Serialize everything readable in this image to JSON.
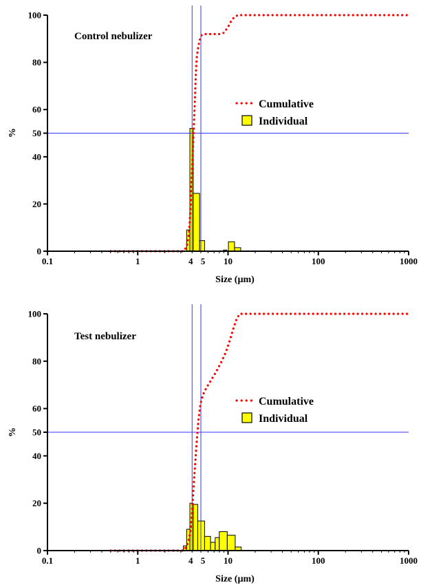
{
  "colors": {
    "bar_fill": "#ffff00",
    "bar_stroke": "#000000",
    "cumulative": "#ff0000",
    "reference_lines": "#3333ff",
    "axis": "#000000"
  },
  "chart_data": [
    {
      "type": "bar",
      "title": "Control nebulizer",
      "xlabel": "Size (µm)",
      "ylabel": "%",
      "xscale": "log",
      "xlim": [
        0.1,
        1000
      ],
      "ylim": [
        0,
        100
      ],
      "xticks": [
        "0.1",
        "1",
        "4",
        "5",
        "10",
        "100",
        "1000"
      ],
      "yticks": [
        "0",
        "20",
        "40",
        "50",
        "60",
        "80",
        "100"
      ],
      "reference_lines": {
        "x": [
          4,
          5
        ],
        "y": [
          50
        ]
      },
      "legend": {
        "position": "center-right",
        "entries": [
          "Cumulative",
          "Individual"
        ]
      },
      "series": [
        {
          "name": "Cumulative",
          "kind": "dotted-line",
          "points": [
            [
              0.5,
              0
            ],
            [
              1,
              0
            ],
            [
              2,
              0
            ],
            [
              3.2,
              0
            ],
            [
              3.5,
              2
            ],
            [
              3.7,
              8
            ],
            [
              3.8,
              15
            ],
            [
              3.9,
              25
            ],
            [
              4.0,
              35
            ],
            [
              4.1,
              45
            ],
            [
              4.2,
              55
            ],
            [
              4.3,
              65
            ],
            [
              4.4,
              75
            ],
            [
              4.5,
              82
            ],
            [
              4.7,
              87
            ],
            [
              4.9,
              90
            ],
            [
              5.1,
              91.5
            ],
            [
              5.5,
              92
            ],
            [
              6,
              92
            ],
            [
              7,
              92
            ],
            [
              8,
              92
            ],
            [
              9,
              92.5
            ],
            [
              10,
              95
            ],
            [
              11,
              98
            ],
            [
              12,
              99.5
            ],
            [
              13,
              100
            ],
            [
              20,
              100
            ],
            [
              50,
              100
            ],
            [
              100,
              100
            ],
            [
              300,
              100
            ],
            [
              1000,
              100
            ]
          ]
        },
        {
          "name": "Individual",
          "kind": "bars",
          "bins": [
            [
              3.48,
              3.78,
              9
            ],
            [
              3.78,
              4.12,
              52
            ],
            [
              4.12,
              4.84,
              24.5
            ],
            [
              4.84,
              5.5,
              4.5
            ],
            [
              8.9,
              9.7,
              0.5
            ],
            [
              10.1,
              11.8,
              4
            ],
            [
              11.8,
              13.8,
              1.5
            ]
          ]
        }
      ]
    },
    {
      "type": "bar",
      "title": "Test nebulizer",
      "xlabel": "Size (µm)",
      "ylabel": "%",
      "xscale": "log",
      "xlim": [
        0.1,
        1000
      ],
      "ylim": [
        0,
        100
      ],
      "xticks": [
        "0.1",
        "1",
        "4",
        "5",
        "10",
        "100",
        "1000"
      ],
      "yticks": [
        "0",
        "20",
        "40",
        "50",
        "60",
        "80",
        "100"
      ],
      "reference_lines": {
        "x": [
          4,
          5
        ],
        "y": [
          50
        ]
      },
      "legend": {
        "position": "center-right",
        "entries": [
          "Cumulative",
          "Individual"
        ]
      },
      "series": [
        {
          "name": "Cumulative",
          "kind": "dotted-line",
          "points": [
            [
              0.5,
              0
            ],
            [
              1,
              0
            ],
            [
              2,
              0
            ],
            [
              3.2,
              0
            ],
            [
              3.5,
              2
            ],
            [
              3.7,
              5
            ],
            [
              3.9,
              10
            ],
            [
              4.05,
              20
            ],
            [
              4.2,
              30
            ],
            [
              4.35,
              38
            ],
            [
              4.5,
              46
            ],
            [
              4.7,
              55
            ],
            [
              4.95,
              62
            ],
            [
              5.3,
              66
            ],
            [
              5.8,
              69
            ],
            [
              6.5,
              72
            ],
            [
              7.5,
              76
            ],
            [
              8.5,
              80
            ],
            [
              9.5,
              84
            ],
            [
              10.5,
              89
            ],
            [
              11.5,
              94
            ],
            [
              12.5,
              98
            ],
            [
              13.5,
              100
            ],
            [
              20,
              100
            ],
            [
              50,
              100
            ],
            [
              100,
              100
            ],
            [
              300,
              100
            ],
            [
              1000,
              100
            ]
          ]
        },
        {
          "name": "Individual",
          "kind": "bars",
          "bins": [
            [
              3.2,
              3.48,
              2
            ],
            [
              3.48,
              3.78,
              9
            ],
            [
              3.78,
              4.12,
              20
            ],
            [
              4.12,
              4.62,
              19.5
            ],
            [
              4.62,
              5.5,
              12.5
            ],
            [
              5.5,
              6.4,
              6
            ],
            [
              6.4,
              7.2,
              3.5
            ],
            [
              7.2,
              8.0,
              5.5
            ],
            [
              8.0,
              9.8,
              8
            ],
            [
              9.8,
              12.0,
              6.5
            ],
            [
              12.0,
              14.0,
              1.5
            ]
          ]
        }
      ]
    }
  ]
}
